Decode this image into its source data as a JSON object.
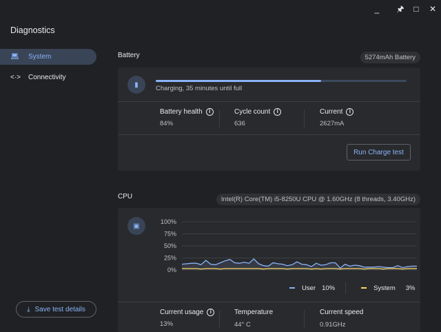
{
  "app": {
    "title": "Diagnostics"
  },
  "window_controls": [
    "minimize",
    "pin",
    "maximize",
    "close"
  ],
  "sidebar": {
    "items": [
      {
        "label": "System",
        "icon": "laptop-icon",
        "selected": true
      },
      {
        "label": "Connectivity",
        "icon": "connectivity-icon",
        "selected": false
      }
    ],
    "save_button": "Save test details"
  },
  "battery": {
    "heading": "Battery",
    "chip": "5274mAh Battery",
    "status": "Charging, 35 minutes until full",
    "progress_percent": 66,
    "stats": [
      {
        "label": "Battery health",
        "value": "84%"
      },
      {
        "label": "Cycle count",
        "value": "636"
      },
      {
        "label": "Current",
        "value": "2627mA"
      }
    ],
    "run_button": "Run Charge test"
  },
  "cpu": {
    "heading": "CPU",
    "chip": "Intel(R) Core(TM) i5-8250U CPU @ 1.60GHz (8 threads, 3.40GHz)",
    "legend": [
      {
        "name": "User",
        "value": "10%",
        "color": "#8ab4f8"
      },
      {
        "name": "System",
        "value": "3%",
        "color": "#fdd663"
      }
    ],
    "stats": [
      {
        "label": "Current usage",
        "value": "13%"
      },
      {
        "label": "Temperature",
        "value": "44° C"
      },
      {
        "label": "Current speed",
        "value": "0.91GHz"
      }
    ]
  },
  "chart_data": {
    "type": "line",
    "yticks": [
      "100%",
      "75%",
      "50%",
      "25%",
      "0%"
    ],
    "ylim": [
      0,
      100
    ],
    "series": [
      {
        "name": "User",
        "color": "#8ab4f8",
        "values": [
          12,
          13,
          14,
          14,
          11,
          20,
          12,
          11,
          15,
          19,
          22,
          15,
          14,
          16,
          14,
          23,
          13,
          9,
          8,
          15,
          13,
          12,
          9,
          11,
          17,
          12,
          11,
          7,
          14,
          10,
          11,
          15,
          15,
          4,
          12,
          8,
          10,
          9,
          6,
          6,
          6,
          7,
          6,
          5,
          5,
          9,
          5,
          7,
          8,
          8
        ]
      },
      {
        "name": "System",
        "color": "#fdd663",
        "values": [
          3,
          3,
          3,
          3,
          2,
          3,
          3,
          3,
          2,
          3,
          3,
          3,
          3,
          3,
          3,
          3,
          3,
          2,
          3,
          3,
          3,
          3,
          2,
          3,
          3,
          3,
          3,
          2,
          3,
          2,
          3,
          3,
          3,
          2,
          3,
          3,
          3,
          3,
          2,
          3,
          3,
          3,
          2,
          3,
          3,
          3,
          2,
          3,
          3,
          3
        ]
      }
    ]
  }
}
